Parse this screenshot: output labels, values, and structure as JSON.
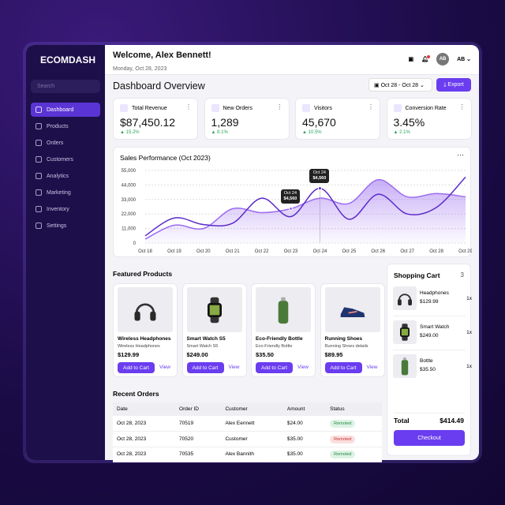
{
  "brand": "ECOMDASH",
  "sidebar": {
    "search_placeholder": "Search",
    "items": [
      {
        "label": "Dashboard",
        "active": true
      },
      {
        "label": "Products"
      },
      {
        "label": "Orders"
      },
      {
        "label": "Customers"
      },
      {
        "label": "Analytics"
      },
      {
        "label": "Marketing"
      },
      {
        "label": "Inventory"
      },
      {
        "label": "Settings"
      }
    ]
  },
  "header": {
    "welcome": "Welcome, Alex Bennett!",
    "date": "Monday, Oct 28, 2023",
    "avatar": "AB",
    "user": "AB"
  },
  "page": {
    "title": "Dashboard Overview",
    "date_range": "Oct 28 - Oct 28",
    "export": "Export"
  },
  "kpis": [
    {
      "label": "Total Revenue",
      "value": "$87,450.12",
      "delta": "▲ 15.2%"
    },
    {
      "label": "New Orders",
      "value": "1,289",
      "delta": "▲ 8.1%"
    },
    {
      "label": "Visitors",
      "value": "45,670",
      "delta": "▲ 10.5%"
    },
    {
      "label": "Conversion Rate",
      "value": "3.45%",
      "delta": "▲ 2.1%"
    }
  ],
  "chart_data": {
    "type": "line",
    "title": "Sales Performance (Oct 2023)",
    "categories": [
      "Oct 18",
      "Oct 19",
      "Oct 20",
      "Oct 21",
      "Oct 22",
      "Oct 23",
      "Oct 24",
      "Oct 25",
      "Oct 26",
      "Oct 27",
      "Oct 28",
      "Oct 29"
    ],
    "yticks": [
      "0",
      "11,000",
      "22,000",
      "33,000",
      "44,000",
      "55,000"
    ],
    "ylim": [
      0,
      55000
    ],
    "grid": true,
    "series": [
      {
        "values": [
          5500,
          19000,
          14000,
          15000,
          34000,
          20000,
          41500,
          18000,
          37000,
          22000,
          27000,
          50000
        ],
        "color": "#5b2bc9"
      },
      {
        "values": [
          3000,
          13500,
          11000,
          26000,
          23000,
          26000,
          34000,
          30000,
          48000,
          35000,
          37500,
          35000
        ],
        "color": "#9b6cf0",
        "fill": true
      }
    ],
    "tooltips": [
      {
        "date": "Oct 24",
        "value": "$4,560"
      },
      {
        "date": "Oct 24",
        "value": "$4,560"
      }
    ]
  },
  "featured": {
    "title": "Featured Products",
    "add": "Add to Cart",
    "view": "View",
    "items": [
      {
        "name": "Wireless Headphones",
        "sub": "Wireless Headphones",
        "price": "$129.99",
        "icon": "headphones"
      },
      {
        "name": "Smart Watch S5",
        "sub": "Smart Watch S5",
        "price": "$249.00",
        "icon": "watch"
      },
      {
        "name": "Eco-Friendly Bottle",
        "sub": "Eco-Friendly Bottle",
        "price": "$35.50",
        "icon": "bottle"
      },
      {
        "name": "Running Shoes",
        "sub": "Running Shoes details",
        "price": "$89.95",
        "icon": "shoe"
      }
    ]
  },
  "cart": {
    "title": "Shopping Cart",
    "count": "3",
    "items": [
      {
        "name": "Headphones",
        "price": "$129.99",
        "qty": "1x"
      },
      {
        "name": "Smart Watch",
        "price": "$249.00",
        "qty": "1x"
      },
      {
        "name": "Bottle",
        "price": "$35.50",
        "qty": "1x"
      }
    ],
    "total_label": "Total",
    "total": "$414.49",
    "checkout": "Checkout"
  },
  "orders": {
    "title": "Recent Orders",
    "columns": [
      "Date",
      "Order ID",
      "Customer",
      "Amount",
      "Status"
    ],
    "rows": [
      [
        "Oct 28, 2023",
        "70519",
        "Alex Eennett",
        "$24.00",
        "Remoted",
        "green"
      ],
      [
        "Oct 28, 2023",
        "70520",
        "Customer",
        "$35.00",
        "Remoted",
        "red"
      ],
      [
        "Oct 28, 2023",
        "70535",
        "Alex Bannith",
        "$35.00",
        "Remoted",
        "green"
      ]
    ]
  }
}
